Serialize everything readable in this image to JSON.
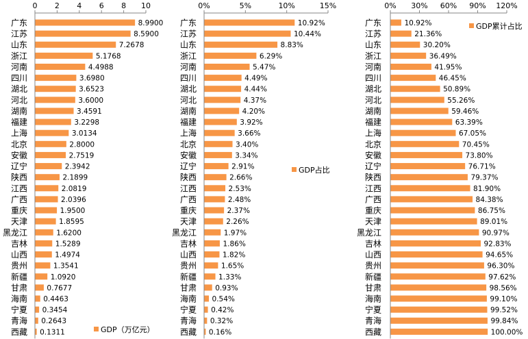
{
  "chart_data": [
    {
      "type": "bar",
      "orientation": "horizontal",
      "categories": [
        "广东",
        "江苏",
        "山东",
        "浙江",
        "河南",
        "四川",
        "湖北",
        "河北",
        "湖南",
        "福建",
        "上海",
        "北京",
        "安徽",
        "辽宁",
        "陕西",
        "江西",
        "广西",
        "重庆",
        "天津",
        "黑龙江",
        "吉林",
        "山西",
        "贵州",
        "新疆",
        "甘肃",
        "海南",
        "宁夏",
        "青海",
        "西藏"
      ],
      "series": [
        {
          "name": "GDP（万亿元）",
          "values": [
            8.99,
            8.59,
            7.2678,
            5.1768,
            4.4988,
            3.698,
            3.6523,
            3.6,
            3.4591,
            3.2298,
            3.0134,
            2.8,
            2.7519,
            2.3942,
            2.1899,
            2.0819,
            2.0396,
            1.95,
            1.8595,
            1.62,
            1.5289,
            1.4974,
            1.3541,
            1.092,
            0.7677,
            0.4463,
            0.3454,
            0.2643,
            0.1311
          ]
        }
      ],
      "value_labels": [
        "8.9900",
        "8.5900",
        "7.2678",
        "5.1768",
        "4.4988",
        "3.6980",
        "3.6523",
        "3.6000",
        "3.4591",
        "3.2298",
        "3.0134",
        "2.8000",
        "2.7519",
        "2.3942",
        "2.1899",
        "2.0819",
        "2.0396",
        "1.9500",
        "1.8595",
        "1.6200",
        "1.5289",
        "1.4974",
        "1.3541",
        "1.0920",
        "0.7677",
        "0.4463",
        "0.3454",
        "0.2643",
        "0.1311"
      ],
      "xlim": [
        0,
        10
      ],
      "ticks": [
        "0",
        "2",
        "4",
        "6",
        "8",
        "10"
      ],
      "legend_position": "bottom-right",
      "color": "#F79646"
    },
    {
      "type": "bar",
      "orientation": "horizontal",
      "categories": [
        "广东",
        "江苏",
        "山东",
        "浙江",
        "河南",
        "四川",
        "湖北",
        "河北",
        "湖南",
        "福建",
        "上海",
        "北京",
        "安徽",
        "辽宁",
        "陕西",
        "江西",
        "广西",
        "重庆",
        "天津",
        "黑龙江",
        "吉林",
        "山西",
        "贵州",
        "新疆",
        "甘肃",
        "海南",
        "宁夏",
        "青海",
        "西藏"
      ],
      "series": [
        {
          "name": "GDP占比",
          "values": [
            10.92,
            10.44,
            8.83,
            6.29,
            5.47,
            4.49,
            4.44,
            4.37,
            4.2,
            3.92,
            3.66,
            3.4,
            3.34,
            2.91,
            2.66,
            2.53,
            2.48,
            2.37,
            2.26,
            1.97,
            1.86,
            1.82,
            1.65,
            1.33,
            0.93,
            0.54,
            0.42,
            0.32,
            0.16
          ]
        }
      ],
      "value_labels": [
        "10.92%",
        "10.44%",
        "8.83%",
        "6.29%",
        "5.47%",
        "4.49%",
        "4.44%",
        "4.37%",
        "4.20%",
        "3.92%",
        "3.66%",
        "3.40%",
        "3.34%",
        "2.91%",
        "2.66%",
        "2.53%",
        "2.48%",
        "2.37%",
        "2.26%",
        "1.97%",
        "1.86%",
        "1.82%",
        "1.65%",
        "1.33%",
        "0.93%",
        "0.54%",
        "0.42%",
        "0.32%",
        "0.16%"
      ],
      "xlim": [
        0,
        15
      ],
      "ticks": [
        "0%",
        "5%",
        "10%",
        "15%"
      ],
      "legend_position": "right-middle",
      "color": "#F79646"
    },
    {
      "type": "bar",
      "orientation": "horizontal",
      "categories": [
        "广东",
        "江苏",
        "山东",
        "浙江",
        "河南",
        "四川",
        "湖北",
        "河北",
        "湖南",
        "福建",
        "上海",
        "北京",
        "安徽",
        "辽宁",
        "陕西",
        "江西",
        "广西",
        "重庆",
        "天津",
        "黑龙江",
        "吉林",
        "山西",
        "贵州",
        "新疆",
        "甘肃",
        "海南",
        "宁夏",
        "青海",
        "西藏"
      ],
      "series": [
        {
          "name": "GDP累计占比",
          "values": [
            10.92,
            21.36,
            30.2,
            36.49,
            41.95,
            46.45,
            50.89,
            55.26,
            59.46,
            63.39,
            67.05,
            70.45,
            73.8,
            76.71,
            79.37,
            81.9,
            84.38,
            86.75,
            89.01,
            90.97,
            92.83,
            94.65,
            96.3,
            97.62,
            98.56,
            99.1,
            99.52,
            99.84,
            100.0
          ]
        }
      ],
      "value_labels": [
        "10.92%",
        "21.36%",
        "30.20%",
        "36.49%",
        "41.95%",
        "46.45%",
        "50.89%",
        "55.26%",
        "59.46%",
        "63.39%",
        "67.05%",
        "70.45%",
        "73.80%",
        "76.71%",
        "79.37%",
        "81.90%",
        "84.38%",
        "86.75%",
        "89.01%",
        "90.97%",
        "92.83%",
        "94.65%",
        "96.30%",
        "97.62%",
        "98.56%",
        "99.10%",
        "99.52%",
        "99.84%",
        "100.00%"
      ],
      "xlim": [
        0,
        120
      ],
      "ticks": [
        "0%",
        "30%",
        "60%",
        "90%",
        "120%"
      ],
      "legend_position": "top-right",
      "color": "#F79646"
    }
  ]
}
